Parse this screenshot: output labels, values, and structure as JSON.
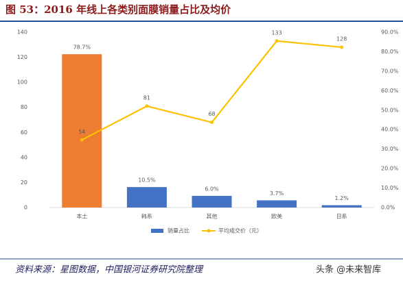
{
  "chart_data": {
    "type": "combo",
    "title": "图 53：2016 年线上各类别面膜销量占比及均价",
    "categories": [
      "本土",
      "韩系",
      "其他",
      "欧美",
      "日系"
    ],
    "series": [
      {
        "name": "销量占比",
        "type": "bar",
        "axis": "y2",
        "color": "#4472c4",
        "colors": [
          "#ed7d31",
          "#4472c4",
          "#4472c4",
          "#4472c4",
          "#4472c4"
        ],
        "values": [
          78.7,
          10.5,
          6.0,
          3.7,
          1.2
        ],
        "value_labels": [
          "78.7%",
          "10.5%",
          "6.0%",
          "3.7%",
          "1.2%"
        ]
      },
      {
        "name": "平均成交价（元）",
        "type": "line",
        "color": "#ffc000",
        "values": [
          54,
          81,
          68,
          133,
          128
        ]
      }
    ],
    "ylim": [
      0,
      140
    ],
    "yticks": [
      0,
      20,
      40,
      60,
      80,
      100,
      120,
      140
    ],
    "y2lim": [
      0,
      90
    ],
    "y2ticks": [
      {
        "value": 0,
        "label": "0.0%"
      },
      {
        "value": 10,
        "label": "10.0%"
      },
      {
        "value": 20,
        "label": "20.0%"
      },
      {
        "value": 30,
        "label": "30.0%"
      },
      {
        "value": 40,
        "label": "40.0%"
      },
      {
        "value": 50,
        "label": "50.0%"
      },
      {
        "value": 60,
        "label": "60.0%"
      },
      {
        "value": 70,
        "label": "70.0%"
      },
      {
        "value": 80,
        "label": "80.0%"
      },
      {
        "value": 90,
        "label": "90.0%"
      }
    ],
    "legend": "bottom",
    "source": "资料来源：星图数据，中国银河证券研究院整理",
    "watermark": "头条 @未来智库"
  }
}
